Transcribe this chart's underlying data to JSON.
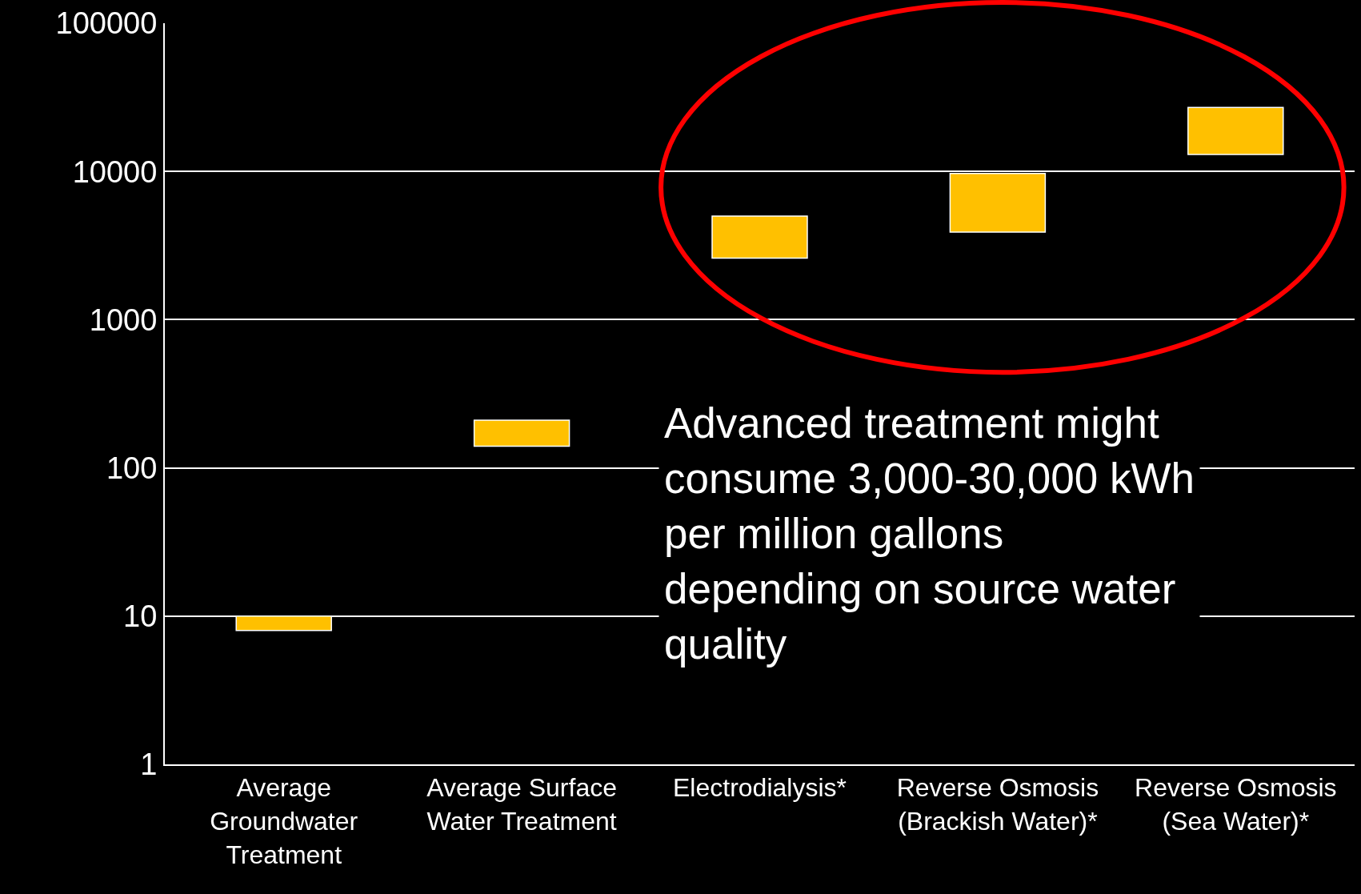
{
  "chart_data": {
    "type": "bar",
    "categories": [
      "Average Groundwater Treatment",
      "Average Surface Water Treatment",
      "Electrodialysis*",
      "Reverse Osmosis (Brackish Water)*",
      "Reverse Osmosis (Sea Water)*"
    ],
    "base": [
      8,
      140,
      2600,
      3900,
      13000
    ],
    "values": [
      2,
      70,
      2400,
      5800,
      14000
    ],
    "color": "#ffc000",
    "log": true,
    "ylim": [
      1,
      100000
    ],
    "yticks": [
      1,
      10,
      100,
      1000,
      10000,
      100000
    ],
    "grid": "y",
    "legend": false,
    "annotations": [
      "Advanced treatment might consume 3,000-30,000 kWh per million gallons depending on source water quality"
    ]
  }
}
